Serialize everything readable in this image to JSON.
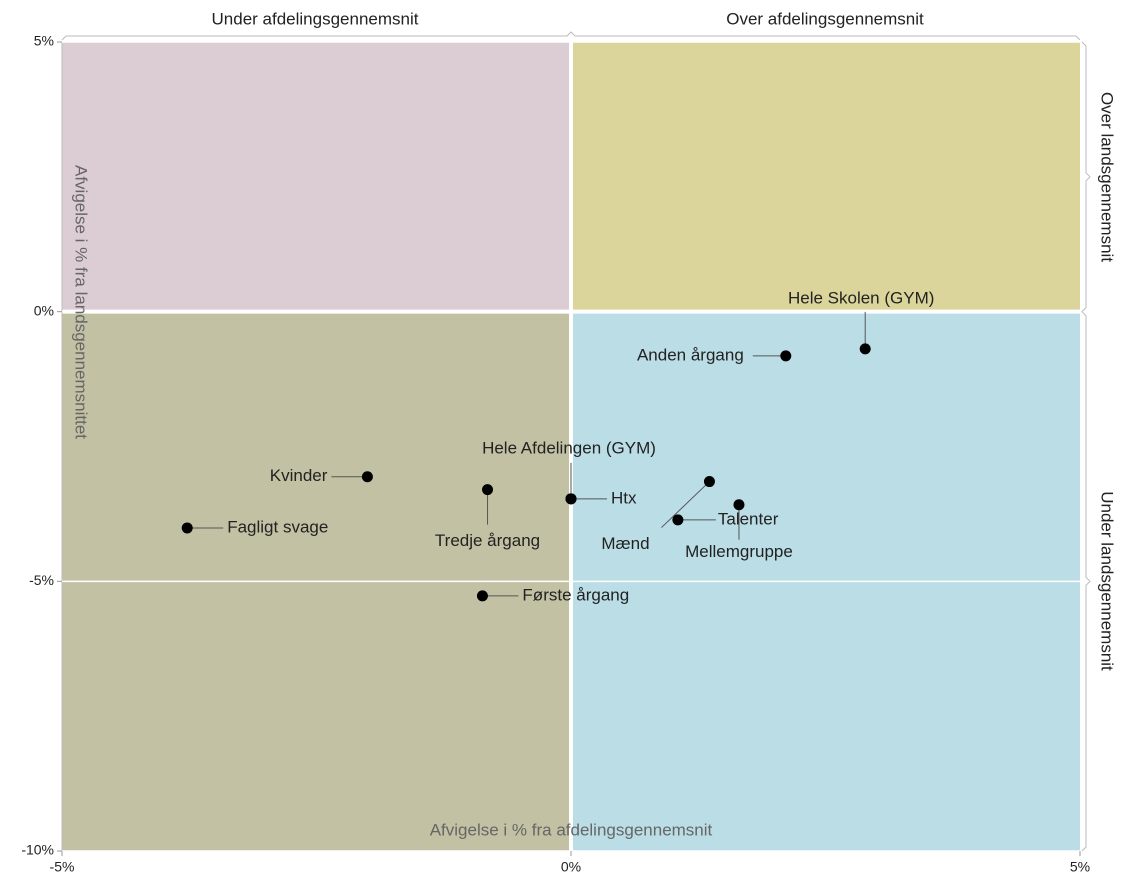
{
  "chart_data": {
    "type": "scatter",
    "quadrant_labels": {
      "top_left": "Under afdelingsgennemsnit",
      "top_right": "Over afdelingsgennemsnit",
      "right_top": "Over landsgennemsnit",
      "right_bottom": "Under landsgennemsnit"
    },
    "quadrant_colors": {
      "top_left": "#dccdd5",
      "top_right": "#dbd59b",
      "bottom_left": "#c3c1a3",
      "bottom_right": "#badde6"
    },
    "x_label": "Afvigelse i % fra afdelingsgennemsnit",
    "y_label": "Afvigelse i % fra landsgennemsnittet",
    "point_labels": [
      "Hele Skolen (GYM)",
      "Anden årgang",
      "Kvinder",
      "Tredje årgang",
      "Hele Afdelingen (GYM)",
      "Htx",
      "Mænd",
      "Talenter",
      "Mellemgruppe",
      "Fagligt svage",
      "Første årgang"
    ],
    "x": [
      2.89,
      2.11,
      -2.0,
      -0.82,
      0.0,
      0.0,
      1.36,
      1.05,
      1.65,
      -3.77,
      -0.87
    ],
    "values": [
      -0.69,
      -0.82,
      -3.06,
      -3.3,
      -3.47,
      -3.47,
      -3.15,
      -3.86,
      -3.58,
      -4.01,
      -5.27
    ],
    "color": "#000000",
    "xlim": [
      -5,
      5
    ],
    "ylim": [
      -10,
      5
    ],
    "xticks": [
      {
        "value": -5,
        "label": "-5%"
      },
      {
        "value": 0,
        "label": "0%"
      },
      {
        "value": 5,
        "label": "5%"
      }
    ],
    "yticks": [
      {
        "value": 5,
        "label": "5%"
      },
      {
        "value": 0,
        "label": "0%"
      },
      {
        "value": -5,
        "label": "-5%"
      },
      {
        "value": -10,
        "label": "-10%"
      }
    ],
    "grid": true
  }
}
